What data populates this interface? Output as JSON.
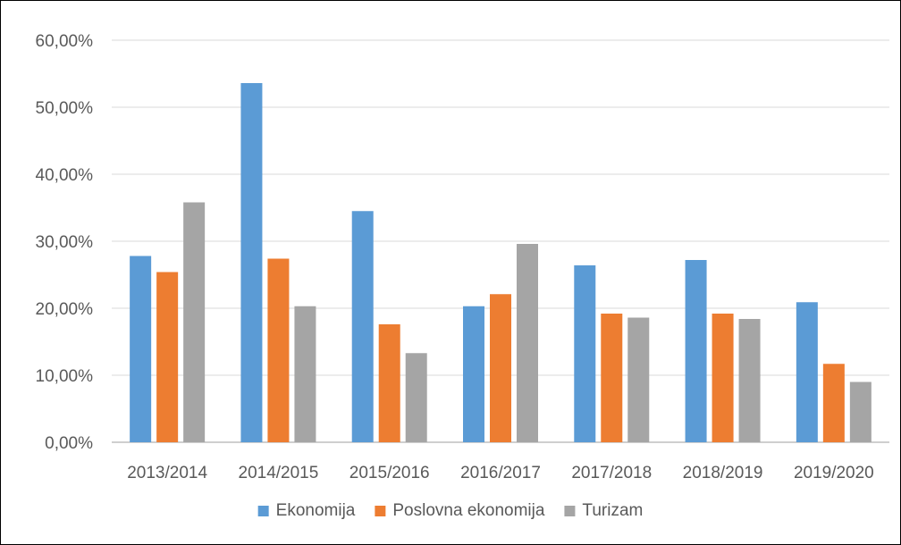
{
  "chart_data": {
    "type": "bar",
    "title": "",
    "xlabel": "",
    "ylabel": "",
    "categories": [
      "2013/2014",
      "2014/2015",
      "2015/2016",
      "2016/2017",
      "2017/2018",
      "2018/2019",
      "2019/2020"
    ],
    "series": [
      {
        "name": "Ekonomija",
        "color": "#5B9BD5",
        "values": [
          27.8,
          53.6,
          34.5,
          20.3,
          26.4,
          27.2,
          20.9
        ]
      },
      {
        "name": "Poslovna ekonomija",
        "color": "#ED7D31",
        "values": [
          25.4,
          27.4,
          17.6,
          22.1,
          19.2,
          19.2,
          11.7
        ]
      },
      {
        "name": "Turizam",
        "color": "#A5A5A5",
        "values": [
          35.8,
          20.3,
          13.3,
          29.6,
          18.6,
          18.4,
          9.0
        ]
      }
    ],
    "ylim": [
      0,
      60
    ],
    "yticks": [
      "0,00%",
      "10,00%",
      "20,00%",
      "30,00%",
      "40,00%",
      "50,00%",
      "60,00%"
    ],
    "grid": true,
    "legend_position": "bottom",
    "gridline_color": "#D9D9D9",
    "axis_line_color": "#BFBFBF",
    "text_color": "#595959"
  }
}
